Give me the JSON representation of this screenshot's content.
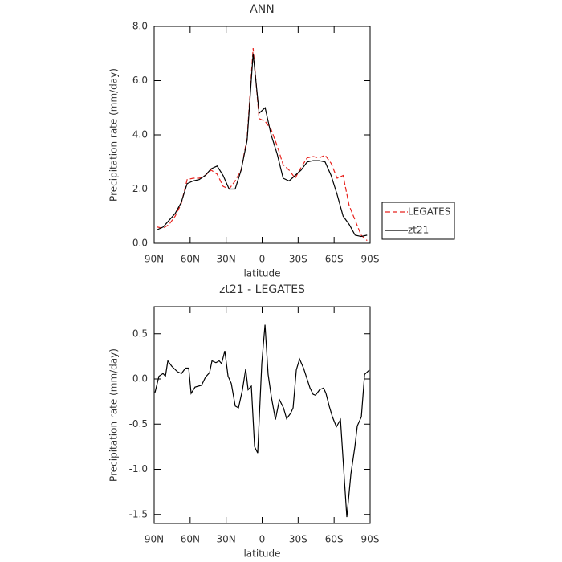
{
  "chart_data": [
    {
      "type": "line",
      "title": "ANN",
      "x_label": "latitude",
      "y_label": "Precipitation rate (mm/day)",
      "x": [
        87.5,
        82.5,
        77.5,
        72.5,
        67.5,
        62.5,
        57.5,
        52.5,
        47.5,
        42.5,
        37.5,
        32.5,
        27.5,
        22.5,
        17.5,
        12.5,
        7.5,
        2.5,
        -2.5,
        -7.5,
        -12.5,
        -17.5,
        -22.5,
        -27.5,
        -32.5,
        -37.5,
        -42.5,
        -47.5,
        -52.5,
        -57.5,
        -62.5,
        -67.5,
        -72.5,
        -77.5,
        -82.5,
        -87.5
      ],
      "series": [
        {
          "name": "LEGATES",
          "color": "#e8231e",
          "line_style": "dashed",
          "values": [
            0.6,
            0.55,
            0.7,
            1.0,
            1.45,
            2.35,
            2.4,
            2.4,
            2.5,
            2.7,
            2.55,
            2.1,
            2.0,
            2.3,
            2.7,
            3.9,
            7.2,
            4.6,
            4.5,
            4.2,
            3.6,
            2.9,
            2.7,
            2.4,
            2.8,
            3.15,
            3.2,
            3.15,
            3.25,
            2.95,
            2.4,
            2.5,
            1.4,
            0.85,
            0.3,
            0.1
          ]
        },
        {
          "name": "zt21",
          "color": "#000000",
          "line_style": "solid",
          "values": [
            0.5,
            0.6,
            0.85,
            1.1,
            1.5,
            2.2,
            2.3,
            2.35,
            2.5,
            2.75,
            2.85,
            2.5,
            2.0,
            2.0,
            2.7,
            3.8,
            7.0,
            4.8,
            5.0,
            4.0,
            3.3,
            2.4,
            2.3,
            2.5,
            2.7,
            3.0,
            3.05,
            3.05,
            3.0,
            2.5,
            1.8,
            1.0,
            0.7,
            0.3,
            0.25,
            0.3
          ]
        }
      ],
      "xlim": [
        90,
        -90
      ],
      "xticks": [
        {
          "value": 90,
          "label": "90N"
        },
        {
          "value": 60,
          "label": "60N"
        },
        {
          "value": 30,
          "label": "30N"
        },
        0,
        {
          "value": -30,
          "label": "30S"
        },
        {
          "value": -60,
          "label": "60S"
        },
        {
          "value": -90,
          "label": "90S"
        }
      ],
      "ylim": [
        0,
        8
      ],
      "yticks": [
        {
          "value": 0,
          "label": "0.0"
        },
        {
          "value": 2,
          "label": "2.0"
        },
        {
          "value": 4,
          "label": "4.0"
        },
        {
          "value": 6,
          "label": "6.0"
        },
        {
          "value": 8,
          "label": "8.0"
        }
      ],
      "legend": "right"
    },
    {
      "type": "line",
      "title": "zt21 - LEGATES",
      "x_label": "latitude",
      "y_label": "Precipitation rate (mm/day)",
      "x": [
        89.3,
        86.0,
        82.6,
        80.6,
        78.6,
        75.3,
        70.6,
        67.2,
        63.9,
        61.2,
        59.2,
        55.9,
        50.5,
        47.2,
        43.8,
        41.8,
        38.5,
        35.8,
        33.8,
        31.1,
        28.4,
        25.7,
        22.4,
        19.7,
        16.4,
        13.7,
        11.7,
        9.0,
        6.3,
        3.7,
        0.3,
        -2.4,
        -5.0,
        -7.7,
        -11.1,
        -14.4,
        -17.8,
        -20.4,
        -23.8,
        -25.8,
        -28.5,
        -31.2,
        -34.5,
        -39.9,
        -42.5,
        -44.5,
        -47.9,
        -51.2,
        -53.2,
        -55.9,
        -58.6,
        -61.9,
        -65.3,
        -70.6,
        -74.0,
        -77.3,
        -79.3,
        -82.7,
        -85.4,
        -89.4
      ],
      "values": [
        -0.15,
        0.03,
        0.06,
        0.03,
        0.2,
        0.14,
        0.08,
        0.06,
        0.12,
        0.12,
        -0.16,
        -0.09,
        -0.07,
        0.02,
        0.07,
        0.2,
        0.18,
        0.2,
        0.17,
        0.31,
        0.03,
        -0.05,
        -0.3,
        -0.32,
        -0.12,
        0.11,
        -0.12,
        -0.08,
        -0.75,
        -0.82,
        0.17,
        0.6,
        0.05,
        -0.2,
        -0.45,
        -0.23,
        -0.32,
        -0.44,
        -0.38,
        -0.32,
        0.1,
        0.22,
        0.12,
        -0.1,
        -0.17,
        -0.18,
        -0.12,
        -0.1,
        -0.16,
        -0.3,
        -0.42,
        -0.53,
        -0.45,
        -1.53,
        -1.05,
        -0.75,
        -0.52,
        -0.42,
        0.05,
        0.1
      ],
      "color": "#000000",
      "xlim": [
        90,
        -90
      ],
      "xticks": [
        {
          "value": 90,
          "label": "90N"
        },
        {
          "value": 60,
          "label": "60N"
        },
        {
          "value": 30,
          "label": "30N"
        },
        0,
        {
          "value": -30,
          "label": "30S"
        },
        {
          "value": -60,
          "label": "60S"
        },
        {
          "value": -90,
          "label": "90S"
        }
      ],
      "ylim": [
        -1.6,
        0.8
      ],
      "yticks": [
        {
          "value": -1.5,
          "label": "-1.5"
        },
        {
          "value": -1,
          "label": "-1.0"
        },
        {
          "value": -0.5,
          "label": "-0.5"
        },
        {
          "value": 0,
          "label": "0.0"
        },
        0.5
      ]
    }
  ]
}
